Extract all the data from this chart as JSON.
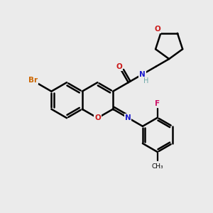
{
  "bg_color": "#ebebeb",
  "bond_color": "#000000",
  "bond_width": 1.8,
  "atom_colors": {
    "C": "#000000",
    "H": "#6fa8a8",
    "N": "#1a1acc",
    "O": "#cc1a1a",
    "Br": "#cc6600",
    "F": "#cc1166"
  },
  "figsize": [
    3.0,
    3.0
  ],
  "dpi": 100
}
